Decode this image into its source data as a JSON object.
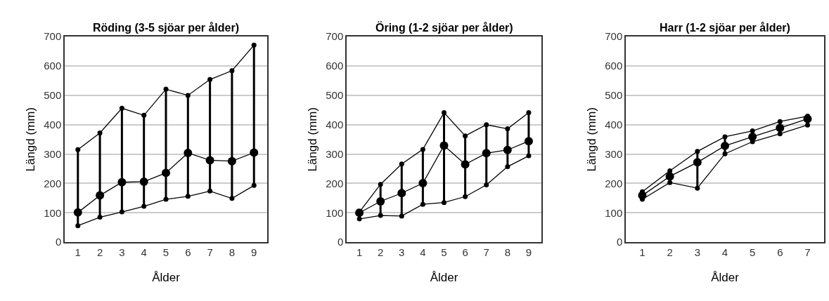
{
  "chart_data": [
    {
      "type": "line",
      "title": "Röding (3-5 sjöar per ålder)",
      "xlabel": "Ålder",
      "ylabel": "Längd (mm)",
      "categories": [
        "1",
        "2",
        "3",
        "4",
        "5",
        "6",
        "7",
        "8",
        "9"
      ],
      "ylim": [
        0,
        700
      ],
      "yticks": [
        0,
        100,
        200,
        300,
        400,
        500,
        600,
        700
      ],
      "grid": "y",
      "marker": "circle",
      "line_style": "solid",
      "series": [
        {
          "color": "#000000",
          "values": [
            315,
            372,
            456,
            432,
            521,
            500,
            554,
            584,
            671
          ]
        },
        {
          "color": "#000000",
          "values": [
            101,
            159,
            204,
            206,
            236,
            304,
            279,
            276,
            305
          ],
          "errors": [
            [
              56,
              315
            ],
            [
              85,
              372
            ],
            [
              103,
              456
            ],
            [
              122,
              432
            ],
            [
              146,
              521
            ],
            [
              156,
              500
            ],
            [
              174,
              554
            ],
            [
              149,
              584
            ],
            [
              193,
              671
            ]
          ]
        },
        {
          "color": "#000000",
          "values": [
            56,
            85,
            103,
            122,
            146,
            156,
            174,
            149,
            193
          ]
        }
      ]
    },
    {
      "type": "line",
      "title": "Öring (1-2 sjöar per ålder)",
      "xlabel": "Ålder",
      "ylabel": "Längd (mm)",
      "categories": [
        "1",
        "2",
        "3",
        "4",
        "5",
        "6",
        "7",
        "8",
        "9"
      ],
      "ylim": [
        0,
        700
      ],
      "yticks": [
        0,
        100,
        200,
        300,
        400,
        500,
        600,
        700
      ],
      "grid": "y",
      "marker": "circle",
      "line_style": "solid",
      "series": [
        {
          "color": "#000000",
          "values": [
            102,
            197,
            266,
            316,
            441,
            362,
            400,
            386,
            441
          ]
        },
        {
          "color": "#000000",
          "values": [
            100,
            139,
            167,
            201,
            329,
            265,
            303,
            314,
            344
          ],
          "errors": [
            [
              79,
              102
            ],
            [
              91,
              197
            ],
            [
              89,
              266
            ],
            [
              129,
              316
            ],
            [
              135,
              441
            ],
            [
              155,
              362
            ],
            [
              195,
              400
            ],
            [
              257,
              386
            ],
            [
              294,
              441
            ]
          ]
        },
        {
          "color": "#000000",
          "values": [
            79,
            91,
            89,
            129,
            135,
            155,
            195,
            257,
            294
          ]
        }
      ]
    },
    {
      "type": "line",
      "title": "Harr (1-2 sjöar per ålder)",
      "xlabel": "Ålder",
      "ylabel": "Längd (mm)",
      "categories": [
        "1",
        "2",
        "3",
        "4",
        "5",
        "6",
        "7"
      ],
      "ylim": [
        0,
        700
      ],
      "yticks": [
        0,
        100,
        200,
        300,
        400,
        500,
        600,
        700
      ],
      "grid": "y",
      "marker": "circle",
      "line_style": "solid",
      "series": [
        {
          "color": "#000000",
          "values": [
            172,
            243,
            309,
            359,
            379,
            411,
            429
          ]
        },
        {
          "color": "#000000",
          "values": [
            159,
            224,
            272,
            328,
            359,
            389,
            420
          ],
          "errors": [
            [
              146,
              172
            ],
            [
              203,
              243
            ],
            [
              184,
              309
            ],
            [
              301,
              359
            ],
            [
              342,
              379
            ],
            [
              369,
              411
            ],
            [
              399,
              429
            ]
          ]
        },
        {
          "color": "#000000",
          "values": [
            146,
            203,
            184,
            301,
            342,
            369,
            399
          ]
        }
      ]
    }
  ]
}
